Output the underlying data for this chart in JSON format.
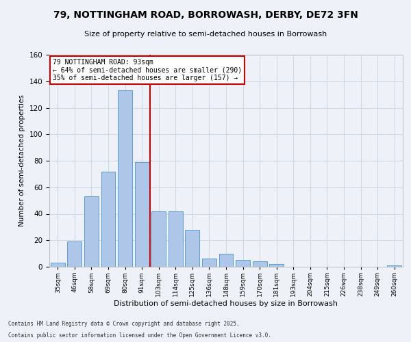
{
  "title": "79, NOTTINGHAM ROAD, BORROWASH, DERBY, DE72 3FN",
  "subtitle": "Size of property relative to semi-detached houses in Borrowash",
  "xlabel": "Distribution of semi-detached houses by size in Borrowash",
  "ylabel": "Number of semi-detached properties",
  "bin_labels": [
    "35sqm",
    "46sqm",
    "58sqm",
    "69sqm",
    "80sqm",
    "91sqm",
    "103sqm",
    "114sqm",
    "125sqm",
    "136sqm",
    "148sqm",
    "159sqm",
    "170sqm",
    "181sqm",
    "193sqm",
    "204sqm",
    "215sqm",
    "226sqm",
    "238sqm",
    "249sqm",
    "260sqm"
  ],
  "bar_values": [
    3,
    19,
    53,
    72,
    133,
    79,
    42,
    42,
    28,
    6,
    10,
    5,
    4,
    2,
    0,
    0,
    0,
    0,
    0,
    0,
    1
  ],
  "bar_color": "#aec6e8",
  "bar_edge_color": "#5a9fd4",
  "vline_x": 5.5,
  "annotation_title": "79 NOTTINGHAM ROAD: 93sqm",
  "annotation_line1": "← 64% of semi-detached houses are smaller (290)",
  "annotation_line2": "35% of semi-detached houses are larger (157) →",
  "annotation_box_color": "#ffffff",
  "annotation_box_edge": "#cc0000",
  "vline_color": "#cc0000",
  "ylim": [
    0,
    160
  ],
  "yticks": [
    0,
    20,
    40,
    60,
    80,
    100,
    120,
    140,
    160
  ],
  "grid_color": "#d0d8e8",
  "bg_color": "#eef2f8",
  "footer1": "Contains HM Land Registry data © Crown copyright and database right 2025.",
  "footer2": "Contains public sector information licensed under the Open Government Licence v3.0."
}
